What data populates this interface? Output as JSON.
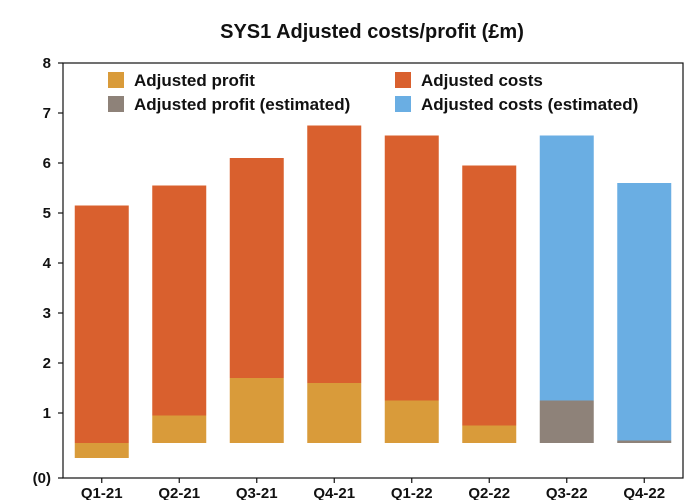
{
  "chart_data": {
    "type": "bar",
    "stacked": true,
    "title": "SYS1 Adjusted costs/profit (£m)",
    "xlabel": "",
    "ylabel": "",
    "ylim": [
      -0.3,
      8
    ],
    "yticks": [
      {
        "value": -0.3,
        "label": "(0)"
      },
      {
        "value": 1,
        "label": "1"
      },
      {
        "value": 2,
        "label": "2"
      },
      {
        "value": 3,
        "label": "3"
      },
      {
        "value": 4,
        "label": "4"
      },
      {
        "value": 5,
        "label": "5"
      },
      {
        "value": 6,
        "label": "6"
      },
      {
        "value": 7,
        "label": "7"
      },
      {
        "value": 8,
        "label": "8"
      }
    ],
    "baseline": 0.4,
    "grid": false,
    "legend_position": "top",
    "categories": [
      "Q1-21",
      "Q2-21",
      "Q3-21",
      "Q4-21",
      "Q1-22",
      "Q2-22",
      "Q3-22",
      "Q4-22"
    ],
    "series": [
      {
        "name": "Adjusted profit",
        "color": "#D99B3A",
        "values": [
          -0.3,
          0.55,
          1.3,
          1.2,
          0.85,
          0.35,
          0,
          0
        ]
      },
      {
        "name": "Adjusted profit (estimated)",
        "color": "#8E8279",
        "values": [
          0,
          0,
          0,
          0,
          0,
          0,
          0.85,
          0.05
        ]
      },
      {
        "name": "Adjusted costs",
        "color": "#D9602E",
        "values": [
          4.75,
          4.6,
          4.4,
          5.15,
          5.3,
          5.2,
          0,
          0
        ]
      },
      {
        "name": "Adjusted costs (estimated)",
        "color": "#6AAEE3",
        "values": [
          0,
          0,
          0,
          0,
          0,
          0,
          5.3,
          5.15
        ]
      }
    ]
  }
}
